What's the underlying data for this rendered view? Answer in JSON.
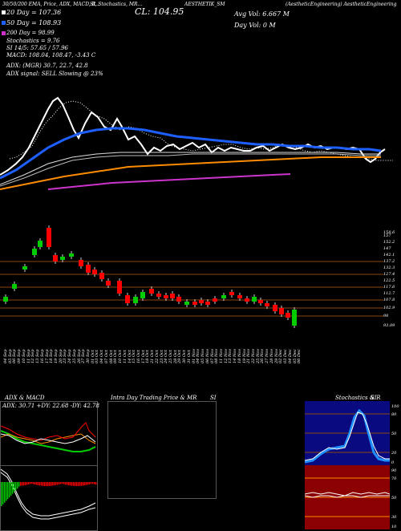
{
  "header": {
    "ticker_info": "(AestheticEngineering) AestheticEngineering",
    "indicators_line": "30/50/200 EMA, Price, ADX, MACD, R...",
    "stoch_line": "SI, Stochastics, MR...",
    "cl_label": "CL: 104.95",
    "symbol_line": "AESTHETIK_SM",
    "avg_vol": "Avg Vol: 6.667 M",
    "day_vol": "Day Vol: 0  M",
    "ema20": "20  Day = 107.36",
    "ema50": "50  Day = 108.93",
    "ema200": "200  Day = 98.99",
    "stochastics": "Stochastics = 9.76",
    "si": "SI 14/5: 57.65 / 57.96",
    "macd": "MACD: 108.04, 108.47, -3.43 C",
    "adx": "ADX:                     (MGR) 30.7, 22.7, 42.8",
    "adx_signal": "ADX  signal: SELL  Slowing @ 23%"
  },
  "price_axis": [
    "158.6",
    "157",
    "152.2",
    "147",
    "142.1",
    "137.2",
    "132.3",
    "127.4",
    "122.5",
    "117.6",
    "112.7",
    "107.8",
    "102.9",
    "98",
    "93.09"
  ],
  "date_labels": [
    "04 Sep",
    "05 Sep",
    "06 Sep",
    "09 Sep",
    "10 Sep",
    "11 Sep",
    "12 Sep",
    "13 Sep",
    "16 Sep",
    "17 Sep",
    "18 Sep",
    "19 Sep",
    "20 Sep",
    "23 Sep",
    "24 Sep",
    "25 Sep",
    "26 Sep",
    "27 Sep",
    "30 Sep",
    "01 Oct",
    "03 Oct",
    "04 Oct",
    "07 Oct",
    "08 Oct",
    "09 Oct",
    "10 Oct",
    "11 Oct",
    "14 Oct",
    "15 Oct",
    "16 Oct",
    "17 Oct",
    "18 Oct",
    "21 Oct",
    "22 Oct",
    "23 Oct",
    "24 Oct",
    "25 Oct",
    "28 Oct",
    "29 Oct",
    "30 Oct",
    "31 Oct",
    "01 Nov",
    "04 Nov",
    "05 Nov",
    "06 Nov",
    "07 Nov",
    "08 Nov",
    "11 Nov",
    "12 Nov",
    "13 Nov",
    "14 Nov",
    "18 Nov",
    "19 Nov",
    "21 Nov",
    "22 Nov",
    "25 Nov",
    "26 Nov",
    "27 Nov",
    "28 Nov",
    "29 Nov",
    "02 Dec",
    "03 Dec",
    "04 Dec",
    "05 Dec",
    "06 Dec"
  ],
  "panels": {
    "adx_title": "ADX  & MACD",
    "adx_readout": "ADX: 30.71  +DY: 22.68  -DY: 42.78",
    "intraday_title": "Intra  Day Trading Price  & MR",
    "intraday_si": "SI",
    "stoch_title": "Stochastics  & R",
    "stoch_si": "SI",
    "stoch_axis": [
      "100",
      "80",
      "50",
      "20",
      "0"
    ],
    "si_axis": [
      "90",
      "70",
      "50",
      "30",
      "10"
    ]
  },
  "colors": {
    "bg": "#000000",
    "up": "#00cc00",
    "down": "#ff0000",
    "ema_short": "#ffffff",
    "ema_mid": "#1e5fff",
    "ema_long": "#ff8c00",
    "ema_200": "#cc33cc",
    "grid": "#8b4513",
    "stoch_fill": "#0a0a80",
    "si_fill": "#8b0000"
  }
}
